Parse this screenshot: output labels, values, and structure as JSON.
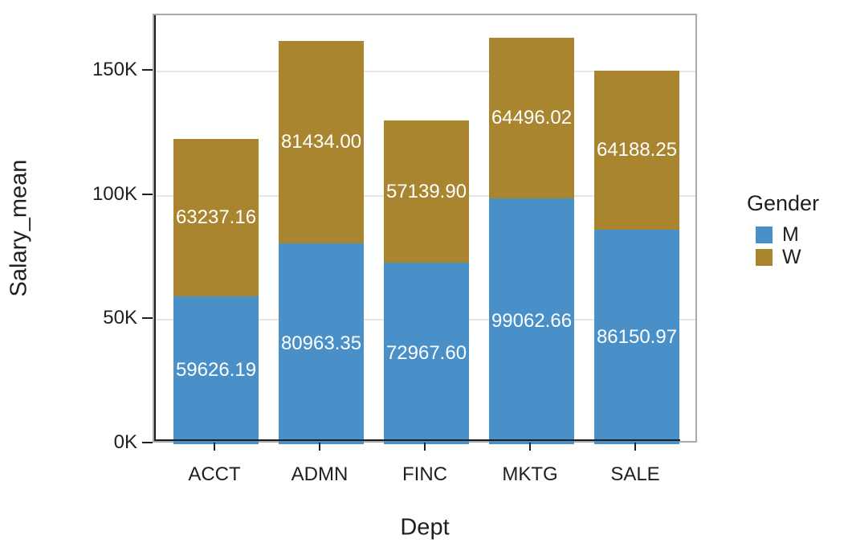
{
  "chart_data": {
    "type": "bar",
    "stacked": true,
    "categories": [
      "ACCT",
      "ADMN",
      "FINC",
      "MKTG",
      "SALE"
    ],
    "series": [
      {
        "name": "M",
        "color": "#4990c9",
        "values": [
          59626.19,
          80963.35,
          72967.6,
          99062.66,
          86150.97
        ],
        "value_labels": [
          "59626.19",
          "80963.35",
          "72967.60",
          "99062.66",
          "86150.97"
        ]
      },
      {
        "name": "W",
        "color": "#a9852f",
        "values": [
          63237.16,
          81434.0,
          57139.9,
          64496.02,
          64188.25
        ],
        "value_labels": [
          "63237.16",
          "81434.00",
          "57139.90",
          "64496.02",
          "64188.25"
        ]
      }
    ],
    "xlabel": "Dept",
    "ylabel": "Salary_mean",
    "y_ticks": [
      {
        "value": 0,
        "label": "0K"
      },
      {
        "value": 50000,
        "label": "50K"
      },
      {
        "value": 100000,
        "label": "100K"
      },
      {
        "value": 150000,
        "label": "150K"
      }
    ],
    "ylim": [
      0,
      172600
    ],
    "grid": "horizontal",
    "legend": {
      "title": "Gender",
      "position": "right",
      "entries": [
        "M",
        "W"
      ]
    },
    "colors": {
      "bar_label_text": "#ffffff",
      "axis_text": "#1f1f1f",
      "gridline": "#e9e5df",
      "panel_border": "#a9a9a9",
      "axis_line": "#1f1f1f"
    }
  }
}
